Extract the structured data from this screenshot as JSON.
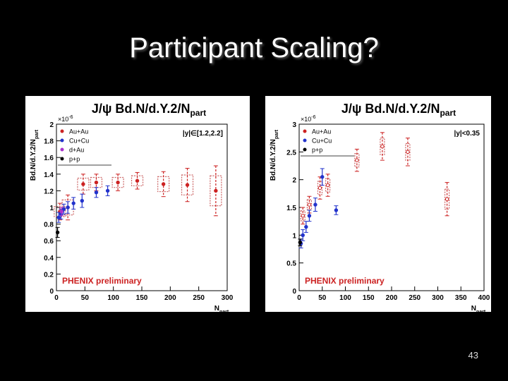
{
  "slide": {
    "title": "Participant Scaling?",
    "number": "43"
  },
  "chart_data": [
    {
      "type": "scatter",
      "title": "J/ψ Bd.N/d.Y.2/N",
      "title_sub": "part",
      "ylabel": "Bd.N/d.Y.2/N",
      "ylabel_sub": "part",
      "xlabel": "N",
      "xlabel_sub": "part",
      "exponent_label": "×10",
      "exponent_power": "-6",
      "xlim": [
        0,
        300
      ],
      "ylim": [
        0,
        2
      ],
      "x_ticks": [
        "0",
        "50",
        "100",
        "150",
        "200",
        "250",
        "300"
      ],
      "y_ticks": [
        "0",
        "0.2",
        "0.4",
        "0.6",
        "0.8",
        "1",
        "1.2",
        "1.4",
        "1.6",
        "1.8",
        "2"
      ],
      "rapidity_label": "|y|∈[1.2,2.2]",
      "annotation": "PHENIX preliminary",
      "legend_position": "top-left",
      "legend": [
        {
          "name": "Au+Au",
          "color": "#cc2222"
        },
        {
          "name": "Cu+Cu",
          "color": "#2233cc"
        },
        {
          "name": "d+Au",
          "color": "#aa33cc"
        },
        {
          "name": "p+p",
          "color": "#000000"
        }
      ],
      "series": [
        {
          "name": "Au+Au",
          "color": "#cc2222",
          "x": [
            6,
            20,
            47,
            70,
            108,
            142,
            188,
            230,
            280
          ],
          "y": [
            0.95,
            1.0,
            1.28,
            1.3,
            1.3,
            1.32,
            1.28,
            1.27,
            1.2
          ],
          "err": [
            0.1,
            0.15,
            0.12,
            0.1,
            0.1,
            0.1,
            0.15,
            0.2,
            0.3
          ]
        },
        {
          "name": "Cu+Cu",
          "color": "#2233cc",
          "x": [
            4,
            8,
            13,
            20,
            30,
            45,
            70,
            90
          ],
          "y": [
            0.88,
            0.92,
            0.98,
            1.0,
            1.05,
            1.08,
            1.18,
            1.2
          ],
          "err": [
            0.06,
            0.06,
            0.06,
            0.07,
            0.07,
            0.08,
            0.06,
            0.06
          ]
        },
        {
          "name": "d+Au",
          "color": "#aa33cc",
          "x": [
            9
          ],
          "y": [
            0.95
          ],
          "err": [
            0.05
          ]
        },
        {
          "name": "p+p",
          "color": "#000000",
          "x": [
            2
          ],
          "y": [
            0.7
          ],
          "err": [
            0.06
          ]
        }
      ]
    },
    {
      "type": "scatter",
      "title": "J/ψ Bd.N/d.Y.2/N",
      "title_sub": "part",
      "ylabel": "Bd.N/d.Y.2/N",
      "ylabel_sub": "part",
      "xlabel": "N",
      "xlabel_sub": "part",
      "exponent_label": "×10",
      "exponent_power": "-6",
      "xlim": [
        0,
        400
      ],
      "ylim": [
        0,
        3
      ],
      "x_ticks": [
        "0",
        "50",
        "100",
        "150",
        "200",
        "250",
        "300",
        "350",
        "400"
      ],
      "y_ticks": [
        "0",
        "0.5",
        "1",
        "1.5",
        "2",
        "2.5",
        "3"
      ],
      "rapidity_label": "|y|<0.35",
      "annotation": "PHENIX preliminary",
      "legend_position": "top-left",
      "legend": [
        {
          "name": "Au+Au",
          "color": "#cc2222"
        },
        {
          "name": "Cu+Cu",
          "color": "#2233cc"
        },
        {
          "name": "p+p",
          "color": "#000000"
        }
      ],
      "series": [
        {
          "name": "Au+Au",
          "color": "#cc2222",
          "x": [
            8,
            22,
            45,
            62,
            125,
            180,
            235,
            320
          ],
          "y": [
            1.35,
            1.55,
            1.85,
            1.9,
            2.35,
            2.6,
            2.5,
            1.65
          ],
          "err": [
            0.15,
            0.15,
            0.2,
            0.2,
            0.2,
            0.25,
            0.25,
            0.3
          ]
        },
        {
          "name": "Cu+Cu",
          "color": "#2233cc",
          "x": [
            4,
            8,
            15,
            22,
            35,
            50,
            80
          ],
          "y": [
            0.85,
            1.0,
            1.15,
            1.35,
            1.55,
            2.05,
            1.45
          ],
          "err": [
            0.08,
            0.1,
            0.1,
            0.1,
            0.12,
            0.15,
            0.08
          ]
        },
        {
          "name": "p+p",
          "color": "#000000",
          "x": [
            2
          ],
          "y": [
            0.87
          ],
          "err": [
            0.06
          ]
        }
      ]
    }
  ]
}
